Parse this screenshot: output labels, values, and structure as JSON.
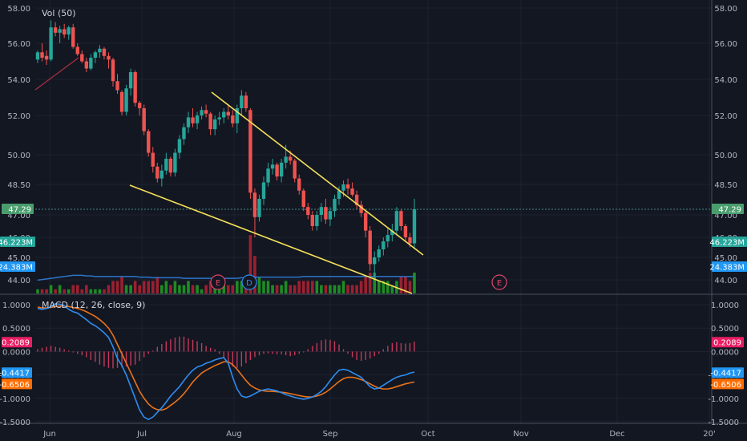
{
  "colors": {
    "background": "#131722",
    "grid": "#363c4e",
    "up": "#26a69a",
    "down": "#ef5350",
    "vol_up": "#1e8c24",
    "vol_down": "#9c2030",
    "vol_ma": "#2b76c9",
    "trendline": "#f5e05a",
    "macd_line": "#2e8df0",
    "signal_line": "#e8731c",
    "hist": "#c23a5a",
    "price_tag": "#4a9e6e",
    "vol_tag": "#26a69a",
    "vol_ma_tag": "#2196f3",
    "hist_tag": "#e91e63",
    "macd_tag": "#2196f3",
    "signal_tag": "#ff6d00"
  },
  "chart_data": [
    {
      "type": "candlestick",
      "overlay_label": "Vol (50)",
      "y_ticks": [
        "58.00",
        "56.00",
        "54.00",
        "52.00",
        "50.00",
        "48.50",
        "47.00",
        "46.00",
        "45.00",
        "44.00"
      ],
      "x_ticks": [
        "Jun",
        "Jul",
        "Aug",
        "Sep",
        "Oct",
        "Nov",
        "Dec",
        "20'"
      ],
      "last_price": 47.29,
      "last_price_label": "47.29",
      "volume_label": "46.223M",
      "volume_ma_label": "24.383M",
      "candles": [
        {
          "o": 55.1,
          "h": 55.6,
          "l": 54.9,
          "c": 55.5
        },
        {
          "o": 55.5,
          "h": 56.0,
          "l": 55.0,
          "c": 55.2
        },
        {
          "o": 55.3,
          "h": 55.6,
          "l": 54.8,
          "c": 55.1
        },
        {
          "o": 55.1,
          "h": 57.3,
          "l": 55.0,
          "c": 56.9
        },
        {
          "o": 56.9,
          "h": 57.2,
          "l": 56.4,
          "c": 56.6
        },
        {
          "o": 56.6,
          "h": 57.0,
          "l": 56.0,
          "c": 56.8
        },
        {
          "o": 56.8,
          "h": 57.1,
          "l": 56.3,
          "c": 56.5
        },
        {
          "o": 56.5,
          "h": 57.0,
          "l": 56.2,
          "c": 56.9
        },
        {
          "o": 56.9,
          "h": 57.1,
          "l": 55.7,
          "c": 55.8
        },
        {
          "o": 55.8,
          "h": 56.0,
          "l": 55.3,
          "c": 55.4
        },
        {
          "o": 55.4,
          "h": 55.6,
          "l": 54.9,
          "c": 55.0
        },
        {
          "o": 55.0,
          "h": 55.2,
          "l": 54.4,
          "c": 54.6
        },
        {
          "o": 54.6,
          "h": 55.4,
          "l": 54.5,
          "c": 55.2
        },
        {
          "o": 55.2,
          "h": 55.6,
          "l": 54.9,
          "c": 55.5
        },
        {
          "o": 55.5,
          "h": 55.9,
          "l": 55.2,
          "c": 55.7
        },
        {
          "o": 55.7,
          "h": 55.8,
          "l": 55.1,
          "c": 55.3
        },
        {
          "o": 55.3,
          "h": 55.5,
          "l": 54.6,
          "c": 55.1
        },
        {
          "o": 55.1,
          "h": 55.2,
          "l": 53.6,
          "c": 53.9
        },
        {
          "o": 53.9,
          "h": 54.3,
          "l": 53.2,
          "c": 53.4
        },
        {
          "o": 53.3,
          "h": 53.4,
          "l": 52.0,
          "c": 52.2
        },
        {
          "o": 52.2,
          "h": 53.7,
          "l": 52.0,
          "c": 53.5
        },
        {
          "o": 53.5,
          "h": 54.6,
          "l": 53.1,
          "c": 54.4
        },
        {
          "o": 54.4,
          "h": 54.5,
          "l": 52.5,
          "c": 52.7
        },
        {
          "o": 52.7,
          "h": 52.8,
          "l": 52.0,
          "c": 52.4
        },
        {
          "o": 52.4,
          "h": 52.6,
          "l": 51.0,
          "c": 51.2
        },
        {
          "o": 51.2,
          "h": 51.3,
          "l": 49.9,
          "c": 50.1
        },
        {
          "o": 50.1,
          "h": 50.4,
          "l": 49.1,
          "c": 49.4
        },
        {
          "o": 49.4,
          "h": 49.6,
          "l": 48.6,
          "c": 48.8
        },
        {
          "o": 48.8,
          "h": 49.5,
          "l": 48.4,
          "c": 49.2
        },
        {
          "o": 49.2,
          "h": 50.1,
          "l": 49.0,
          "c": 49.8
        },
        {
          "o": 49.8,
          "h": 49.9,
          "l": 48.9,
          "c": 49.1
        },
        {
          "o": 49.1,
          "h": 50.3,
          "l": 48.9,
          "c": 50.1
        },
        {
          "o": 50.1,
          "h": 51.0,
          "l": 49.8,
          "c": 50.8
        },
        {
          "o": 50.8,
          "h": 51.6,
          "l": 50.5,
          "c": 51.4
        },
        {
          "o": 51.4,
          "h": 52.2,
          "l": 51.1,
          "c": 51.9
        },
        {
          "o": 51.9,
          "h": 52.4,
          "l": 51.4,
          "c": 51.6
        },
        {
          "o": 51.6,
          "h": 52.2,
          "l": 51.3,
          "c": 52.0
        },
        {
          "o": 52.0,
          "h": 52.5,
          "l": 51.8,
          "c": 52.3
        },
        {
          "o": 52.3,
          "h": 52.6,
          "l": 51.9,
          "c": 52.1
        },
        {
          "o": 52.1,
          "h": 52.2,
          "l": 51.0,
          "c": 51.3
        },
        {
          "o": 51.3,
          "h": 52.0,
          "l": 51.0,
          "c": 51.8
        },
        {
          "o": 51.8,
          "h": 52.2,
          "l": 51.5,
          "c": 51.9
        },
        {
          "o": 51.9,
          "h": 52.4,
          "l": 51.6,
          "c": 52.2
        },
        {
          "o": 52.2,
          "h": 52.6,
          "l": 51.8,
          "c": 52.0
        },
        {
          "o": 52.0,
          "h": 52.3,
          "l": 51.4,
          "c": 51.6
        },
        {
          "o": 51.6,
          "h": 52.6,
          "l": 51.1,
          "c": 52.4
        },
        {
          "o": 52.4,
          "h": 53.4,
          "l": 52.0,
          "c": 53.1
        },
        {
          "o": 53.1,
          "h": 53.3,
          "l": 52.2,
          "c": 52.4
        },
        {
          "o": 52.3,
          "h": 52.4,
          "l": 47.8,
          "c": 48.1
        },
        {
          "o": 48.1,
          "h": 48.3,
          "l": 46.0,
          "c": 46.9
        },
        {
          "o": 46.9,
          "h": 48.0,
          "l": 46.7,
          "c": 47.8
        },
        {
          "o": 47.8,
          "h": 48.9,
          "l": 47.5,
          "c": 48.6
        },
        {
          "o": 48.6,
          "h": 49.6,
          "l": 48.4,
          "c": 49.3
        },
        {
          "o": 49.3,
          "h": 49.8,
          "l": 49.0,
          "c": 49.5
        },
        {
          "o": 49.5,
          "h": 49.6,
          "l": 48.7,
          "c": 48.9
        },
        {
          "o": 48.9,
          "h": 49.8,
          "l": 48.6,
          "c": 49.6
        },
        {
          "o": 49.6,
          "h": 50.5,
          "l": 49.3,
          "c": 49.9
        },
        {
          "o": 49.9,
          "h": 50.2,
          "l": 49.5,
          "c": 49.7
        },
        {
          "o": 49.7,
          "h": 49.8,
          "l": 48.6,
          "c": 48.8
        },
        {
          "o": 48.8,
          "h": 49.0,
          "l": 48.0,
          "c": 48.2
        },
        {
          "o": 48.2,
          "h": 48.3,
          "l": 47.2,
          "c": 47.4
        },
        {
          "o": 47.4,
          "h": 47.6,
          "l": 46.8,
          "c": 47.0
        },
        {
          "o": 47.0,
          "h": 47.2,
          "l": 46.3,
          "c": 46.5
        },
        {
          "o": 46.5,
          "h": 47.2,
          "l": 46.3,
          "c": 47.0
        },
        {
          "o": 47.0,
          "h": 47.6,
          "l": 46.7,
          "c": 47.4
        },
        {
          "o": 47.4,
          "h": 47.8,
          "l": 46.6,
          "c": 46.8
        },
        {
          "o": 46.8,
          "h": 47.4,
          "l": 46.5,
          "c": 47.2
        },
        {
          "o": 47.2,
          "h": 48.0,
          "l": 46.9,
          "c": 47.8
        },
        {
          "o": 47.8,
          "h": 48.4,
          "l": 47.5,
          "c": 48.2
        },
        {
          "o": 48.2,
          "h": 48.7,
          "l": 47.9,
          "c": 48.5
        },
        {
          "o": 48.5,
          "h": 48.8,
          "l": 48.0,
          "c": 48.3
        },
        {
          "o": 48.3,
          "h": 48.6,
          "l": 47.9,
          "c": 48.0
        },
        {
          "o": 48.0,
          "h": 48.2,
          "l": 47.3,
          "c": 47.5
        },
        {
          "o": 47.5,
          "h": 47.7,
          "l": 46.9,
          "c": 47.1
        },
        {
          "o": 47.1,
          "h": 47.2,
          "l": 46.0,
          "c": 46.3
        },
        {
          "o": 46.3,
          "h": 46.5,
          "l": 44.4,
          "c": 44.7
        },
        {
          "o": 44.7,
          "h": 45.3,
          "l": 44.1,
          "c": 45.0
        },
        {
          "o": 45.0,
          "h": 45.6,
          "l": 44.8,
          "c": 45.4
        },
        {
          "o": 45.4,
          "h": 46.0,
          "l": 45.1,
          "c": 45.8
        },
        {
          "o": 45.8,
          "h": 46.4,
          "l": 45.5,
          "c": 46.1
        },
        {
          "o": 46.1,
          "h": 46.6,
          "l": 45.8,
          "c": 46.3
        },
        {
          "o": 46.3,
          "h": 47.4,
          "l": 46.1,
          "c": 47.2
        },
        {
          "o": 47.2,
          "h": 47.3,
          "l": 46.3,
          "c": 46.5
        },
        {
          "o": 46.5,
          "h": 46.6,
          "l": 45.8,
          "c": 46.0
        },
        {
          "o": 46.0,
          "h": 46.2,
          "l": 45.5,
          "c": 45.7
        },
        {
          "o": 45.7,
          "h": 47.8,
          "l": 45.4,
          "c": 47.29
        }
      ],
      "volume": [
        1,
        1,
        1,
        2,
        1,
        2,
        1,
        1,
        2,
        2,
        1,
        2,
        1,
        1,
        1,
        1,
        2,
        3,
        3,
        4,
        2,
        2,
        3,
        2,
        3,
        3,
        3,
        4,
        2,
        3,
        2,
        3,
        2,
        2,
        3,
        2,
        2,
        1,
        2,
        3,
        2,
        2,
        2,
        2,
        2,
        3,
        3,
        2,
        14,
        9,
        4,
        3,
        3,
        2,
        2,
        2,
        3,
        2,
        2,
        3,
        3,
        3,
        3,
        3,
        2,
        2,
        2,
        2,
        2,
        3,
        2,
        2,
        2,
        3,
        4,
        5,
        5,
        3,
        3,
        3,
        2,
        3,
        4,
        4,
        3,
        5
      ],
      "volume_ma": [
        2.2,
        2.3,
        2.4,
        2.5,
        2.6,
        2.7,
        2.8,
        2.9,
        3.0,
        3.0,
        3.0,
        2.9,
        2.9,
        2.8,
        2.8,
        2.8,
        2.8,
        2.8,
        2.8,
        2.8,
        2.8,
        2.8,
        2.8,
        2.7,
        2.7,
        2.7,
        2.6,
        2.6,
        2.6,
        2.6,
        2.6,
        2.6,
        2.6,
        2.5,
        2.5,
        2.5,
        2.5,
        2.5,
        2.5,
        2.5,
        2.5,
        2.5,
        2.5,
        2.5,
        2.5,
        2.5,
        2.6,
        2.6,
        2.7,
        2.7,
        2.7,
        2.7,
        2.7,
        2.7,
        2.7,
        2.7,
        2.7,
        2.7,
        2.7,
        2.7,
        2.8,
        2.8,
        2.8,
        2.8,
        2.8,
        2.8,
        2.8,
        2.8,
        2.8,
        2.8,
        2.8,
        2.8,
        2.8,
        2.8,
        2.8,
        2.8,
        2.8,
        2.8,
        2.8,
        2.8,
        2.8,
        2.8,
        2.8,
        2.8,
        2.8,
        2.8
      ],
      "events": [
        "E",
        "D",
        "E"
      ]
    },
    {
      "type": "line",
      "title": "MACD (12, 26, close, 9)",
      "y_ticks": [
        "1.0000",
        "0.5000",
        "0.0000",
        "-0.5000",
        "-1.0000",
        "-1.5000"
      ],
      "y_ticks_right": [
        "1.0000",
        "0.5000",
        "0.0000",
        "-0.5000",
        "-1.0000",
        "-1.5000"
      ],
      "ylim": [
        -1.5,
        1.0
      ],
      "histogram_label": "0.2089",
      "macd_label": "-0.4417",
      "signal_label": "-0.6506",
      "series": [
        {
          "role": "macd",
          "values": [
            0.92,
            0.9,
            0.92,
            0.95,
            1.02,
            1.01,
            0.98,
            0.9,
            0.85,
            0.82,
            0.75,
            0.68,
            0.6,
            0.55,
            0.48,
            0.4,
            0.3,
            0.1,
            -0.15,
            -0.3,
            -0.5,
            -0.75,
            -1.0,
            -1.25,
            -1.4,
            -1.45,
            -1.4,
            -1.3,
            -1.2,
            -1.08,
            -0.95,
            -0.85,
            -0.75,
            -0.62,
            -0.5,
            -0.4,
            -0.33,
            -0.3,
            -0.25,
            -0.22,
            -0.18,
            -0.15,
            -0.13,
            -0.25,
            -0.55,
            -0.8,
            -0.95,
            -0.98,
            -0.95,
            -0.9,
            -0.85,
            -0.82,
            -0.8,
            -0.82,
            -0.84,
            -0.88,
            -0.92,
            -0.95,
            -0.98,
            -1.0,
            -1.02,
            -1.0,
            -0.97,
            -0.92,
            -0.85,
            -0.75,
            -0.62,
            -0.5,
            -0.4,
            -0.38,
            -0.4,
            -0.45,
            -0.5,
            -0.55,
            -0.65,
            -0.75,
            -0.8,
            -0.78,
            -0.72,
            -0.66,
            -0.6,
            -0.55,
            -0.52,
            -0.5,
            -0.46,
            -0.44
          ]
        },
        {
          "role": "signal",
          "values": [
            0.95,
            0.93,
            0.93,
            0.94,
            0.96,
            0.97,
            0.97,
            0.96,
            0.94,
            0.92,
            0.89,
            0.85,
            0.8,
            0.75,
            0.68,
            0.6,
            0.5,
            0.35,
            0.15,
            -0.05,
            -0.25,
            -0.45,
            -0.65,
            -0.85,
            -1.0,
            -1.12,
            -1.2,
            -1.24,
            -1.25,
            -1.22,
            -1.15,
            -1.08,
            -1.0,
            -0.9,
            -0.78,
            -0.65,
            -0.55,
            -0.46,
            -0.4,
            -0.35,
            -0.3,
            -0.26,
            -0.22,
            -0.22,
            -0.28,
            -0.38,
            -0.5,
            -0.62,
            -0.72,
            -0.78,
            -0.82,
            -0.84,
            -0.85,
            -0.85,
            -0.86,
            -0.87,
            -0.88,
            -0.9,
            -0.92,
            -0.94,
            -0.96,
            -0.97,
            -0.97,
            -0.95,
            -0.92,
            -0.87,
            -0.8,
            -0.72,
            -0.64,
            -0.58,
            -0.55,
            -0.55,
            -0.57,
            -0.6,
            -0.64,
            -0.69,
            -0.74,
            -0.78,
            -0.8,
            -0.8,
            -0.78,
            -0.75,
            -0.72,
            -0.69,
            -0.67,
            -0.65
          ]
        },
        {
          "role": "histogram",
          "values": [
            0.05,
            0.08,
            0.1,
            0.12,
            0.1,
            0.08,
            0.05,
            0.02,
            -0.02,
            -0.05,
            -0.08,
            -0.12,
            -0.18,
            -0.22,
            -0.28,
            -0.32,
            -0.35,
            -0.36,
            -0.35,
            -0.34,
            -0.32,
            -0.3,
            -0.28,
            -0.2,
            -0.12,
            -0.05,
            0.02,
            0.1,
            0.16,
            0.22,
            0.26,
            0.3,
            0.32,
            0.32,
            0.28,
            0.25,
            0.22,
            0.18,
            0.12,
            0.08,
            0.05,
            -0.05,
            -0.15,
            -0.25,
            -0.32,
            -0.35,
            -0.32,
            -0.25,
            -0.18,
            -0.12,
            -0.08,
            -0.05,
            -0.04,
            -0.05,
            -0.06,
            -0.06,
            -0.08,
            -0.1,
            -0.08,
            -0.05,
            -0.02,
            0.05,
            0.12,
            0.18,
            0.24,
            0.26,
            0.25,
            0.22,
            0.15,
            0.05,
            -0.05,
            -0.12,
            -0.18,
            -0.2,
            -0.18,
            -0.15,
            -0.1,
            -0.05,
            0.05,
            0.12,
            0.18,
            0.2,
            0.18,
            0.17,
            0.18,
            0.21
          ]
        }
      ]
    }
  ]
}
